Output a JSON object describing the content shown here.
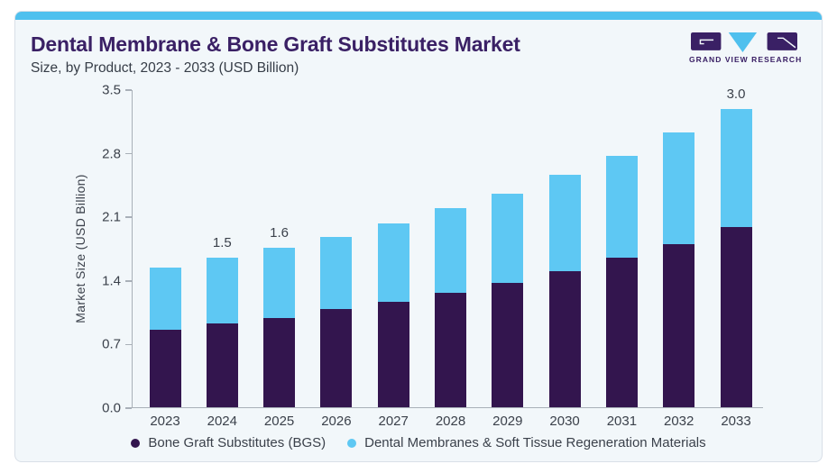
{
  "header": {
    "title": "Dental Membrane & Bone Graft Substitutes Market",
    "subtitle": "Size, by Product, 2023 - 2033 (USD Billion)",
    "logo_text": "GRAND VIEW RESEARCH"
  },
  "theme": {
    "accent_blue": "#4fc0ee",
    "bgs_color": "#33154e",
    "mem_color": "#5ec8f3",
    "title_purple": "#3a2065",
    "text_dark": "#3b414b",
    "axis_gray": "#a9b0b8",
    "card_bg": "#f2f7fa",
    "card_border": "#d9dfe7"
  },
  "chart_data": {
    "type": "bar",
    "stacked": true,
    "title": "Dental Membrane & Bone Graft Substitutes Market Size, by Product, 2023 - 2033 (USD Billion)",
    "xlabel": "",
    "ylabel": "Market Size (USD Billion)",
    "ylim": [
      0,
      3.5
    ],
    "y_ticks": [
      0,
      0.7,
      1.4,
      2.1,
      2.8,
      3.5
    ],
    "grid": false,
    "legend_position": "bottom",
    "categories": [
      "2023",
      "2024",
      "2025",
      "2026",
      "2027",
      "2028",
      "2029",
      "2030",
      "2031",
      "2032",
      "2033"
    ],
    "series": [
      {
        "name": "Bone Graft Substitutes (BGS)",
        "color": "#33154e",
        "values": [
          0.78,
          0.84,
          0.9,
          0.99,
          1.06,
          1.15,
          1.25,
          1.37,
          1.5,
          1.64,
          1.81
        ]
      },
      {
        "name": "Dental Membranes & Soft Tissue Regeneration Materials",
        "color": "#5ec8f3",
        "values": [
          0.62,
          0.66,
          0.7,
          0.72,
          0.79,
          0.85,
          0.9,
          0.97,
          1.03,
          1.12,
          1.19
        ]
      }
    ],
    "totals": [
      1.4,
      1.5,
      1.6,
      1.71,
      1.85,
      2.0,
      2.15,
      2.34,
      2.53,
      2.76,
      3.0
    ],
    "total_labels": {
      "2024": "1.5",
      "2025": "1.6",
      "2033": "3.0"
    }
  }
}
